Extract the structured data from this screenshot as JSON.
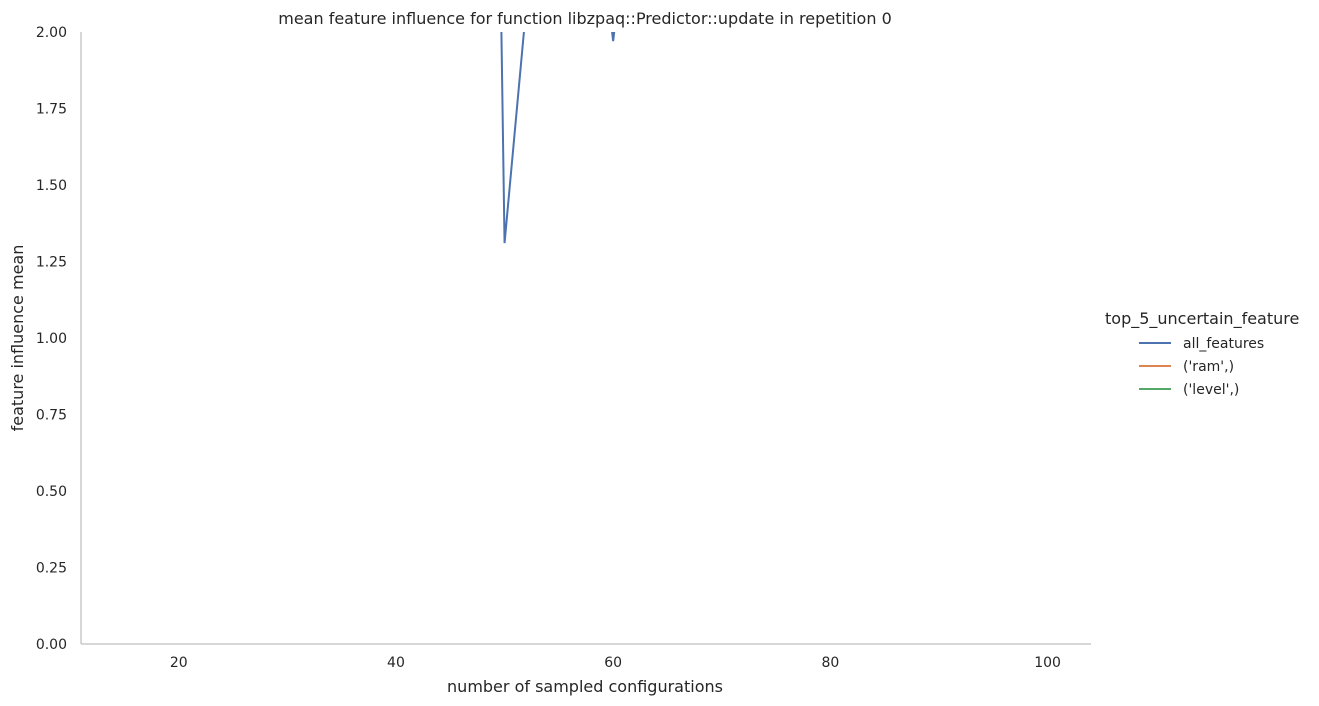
{
  "chart_data": {
    "type": "line",
    "title": "mean feature influence for function libzpaq::Predictor::update in repetition 0",
    "xlabel": "number of sampled configurations",
    "ylabel": "feature influence mean",
    "xlim": [
      11,
      104
    ],
    "ylim": [
      0,
      2
    ],
    "xticks": [
      20,
      40,
      60,
      80,
      100
    ],
    "yticks": [
      0,
      0.25,
      0.5,
      0.75,
      1.0,
      1.25,
      1.5,
      1.75,
      2.0
    ],
    "ytick_labels": [
      "0.00",
      "0.25",
      "0.50",
      "0.75",
      "1.00",
      "1.25",
      "1.50",
      "1.75",
      "2.00"
    ],
    "xtick_labels": [
      "20",
      "40",
      "60",
      "80",
      "100"
    ],
    "grid": false,
    "legend": {
      "title": "top_5_uncertain_feature",
      "placement": "right"
    },
    "series": [
      {
        "name": "all_features",
        "color": "#4c72b0",
        "x": [
          49.5,
          50,
          52.3,
          58,
          60,
          62
        ],
        "y": [
          2.5,
          1.31,
          2.2,
          2.6,
          1.97,
          2.6
        ]
      },
      {
        "name": "('ram',)",
        "color": "#dd8452",
        "x": [],
        "y": []
      },
      {
        "name": "('level',)",
        "color": "#55a868",
        "x": [],
        "y": []
      }
    ]
  }
}
